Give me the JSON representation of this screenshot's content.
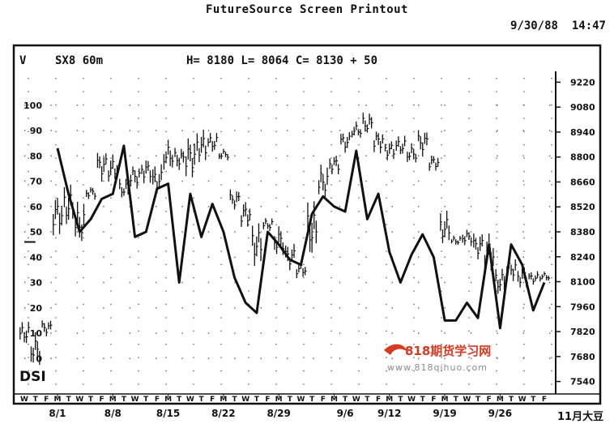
{
  "header": {
    "title": "FutureSource Screen Printout",
    "date": "9/30/88",
    "time": "14:47"
  },
  "info": {
    "v_label": "V",
    "symbol": "SX8 60m",
    "hlc": "H= 8180 L= 8064 C= 8130  + 50"
  },
  "indicator_label": "DSI",
  "corner_label": "11月大豆",
  "watermark": {
    "brand": "818期货学习网",
    "url": "www.818qihuo.com"
  },
  "colors": {
    "ink": "#111111",
    "watermark": "#d63a1f"
  },
  "chart_data": {
    "type": "bar",
    "y_left": {
      "ticks": [
        100,
        90,
        80,
        70,
        60,
        50,
        40,
        30,
        20,
        10,
        0
      ],
      "range": [
        -14,
        114
      ]
    },
    "y_right": {
      "ticks": [
        9220,
        9080,
        8940,
        8800,
        8660,
        8520,
        8380,
        8240,
        8100,
        7960,
        7820,
        7680,
        7540
      ],
      "range": [
        7470,
        9290
      ]
    },
    "weekday_labels": [
      "W",
      "T",
      "F",
      "M",
      "T",
      "W",
      "T",
      "F",
      "M",
      "T",
      "W",
      "T",
      "F",
      "M",
      "T",
      "W",
      "T",
      "F",
      "M",
      "T",
      "W",
      "T",
      "F",
      "M",
      "T",
      "W",
      "T",
      "F",
      "M",
      "T",
      "W",
      "T",
      "F",
      "M",
      "T",
      "W",
      "T",
      "F",
      "M",
      "T",
      "W",
      "T",
      "F",
      "M",
      "T",
      "W",
      "T",
      "F"
    ],
    "date_labels": [
      {
        "label": "8/1",
        "day_index": 3
      },
      {
        "label": "8/8",
        "day_index": 8
      },
      {
        "label": "8/15",
        "day_index": 13
      },
      {
        "label": "8/22",
        "day_index": 18
      },
      {
        "label": "8/29",
        "day_index": 23
      },
      {
        "label": "9/6",
        "day_index": 29
      },
      {
        "label": "9/12",
        "day_index": 33
      },
      {
        "label": "9/19",
        "day_index": 38
      },
      {
        "label": "9/26",
        "day_index": 43
      }
    ],
    "dsi_points": [
      [
        3,
        83
      ],
      [
        4,
        65
      ],
      [
        5,
        50
      ],
      [
        6,
        55
      ],
      [
        7,
        63
      ],
      [
        8,
        65
      ],
      [
        9,
        84
      ],
      [
        10,
        48
      ],
      [
        11,
        50
      ],
      [
        12,
        67
      ],
      [
        13,
        69
      ],
      [
        14,
        30
      ],
      [
        15,
        65
      ],
      [
        16,
        48
      ],
      [
        17,
        61
      ],
      [
        18,
        50
      ],
      [
        19,
        32
      ],
      [
        20,
        22
      ],
      [
        21,
        18
      ],
      [
        22,
        50
      ],
      [
        23,
        45
      ],
      [
        24,
        39
      ],
      [
        25,
        37
      ],
      [
        26,
        57
      ],
      [
        27,
        64
      ],
      [
        28,
        60
      ],
      [
        29,
        58
      ],
      [
        30,
        82
      ],
      [
        31,
        55
      ],
      [
        32,
        65
      ],
      [
        33,
        42
      ],
      [
        34,
        30
      ],
      [
        35,
        41
      ],
      [
        36,
        49
      ],
      [
        37,
        40
      ],
      [
        38,
        15
      ],
      [
        39,
        15
      ],
      [
        40,
        22
      ],
      [
        41,
        16
      ],
      [
        42,
        45
      ],
      [
        43,
        12
      ],
      [
        44,
        45
      ],
      [
        45,
        37
      ],
      [
        46,
        19
      ],
      [
        47,
        30
      ]
    ],
    "dsi_early_points": [
      [
        0,
        46
      ],
      [
        1,
        46
      ]
    ],
    "price_bars": [
      [
        0,
        7880,
        7740
      ],
      [
        1,
        7820,
        7620
      ],
      [
        2,
        7890,
        7790
      ],
      [
        3,
        8600,
        8360
      ],
      [
        4,
        8650,
        8400
      ],
      [
        5,
        8550,
        8300
      ],
      [
        6,
        8640,
        8560
      ],
      [
        7,
        8840,
        8660
      ],
      [
        8,
        8820,
        8650
      ],
      [
        9,
        8680,
        8560
      ],
      [
        10,
        8760,
        8620
      ],
      [
        11,
        8800,
        8650
      ],
      [
        12,
        8760,
        8580
      ],
      [
        13,
        8900,
        8720
      ],
      [
        14,
        8860,
        8720
      ],
      [
        15,
        8920,
        8680
      ],
      [
        16,
        8960,
        8760
      ],
      [
        17,
        8940,
        8820
      ],
      [
        18,
        8850,
        8780
      ],
      [
        19,
        8620,
        8500
      ],
      [
        20,
        8560,
        8400
      ],
      [
        21,
        8440,
        8180
      ],
      [
        22,
        8460,
        8380
      ],
      [
        23,
        8420,
        8240
      ],
      [
        24,
        8320,
        8160
      ],
      [
        25,
        8220,
        8120
      ],
      [
        26,
        8560,
        8220
      ],
      [
        27,
        8760,
        8560
      ],
      [
        28,
        8820,
        8700
      ],
      [
        29,
        8950,
        8820
      ],
      [
        30,
        9000,
        8900
      ],
      [
        31,
        9050,
        8920
      ],
      [
        32,
        8960,
        8820
      ],
      [
        33,
        8900,
        8780
      ],
      [
        34,
        8920,
        8800
      ],
      [
        35,
        8880,
        8760
      ],
      [
        36,
        8960,
        8800
      ],
      [
        37,
        8820,
        8720
      ],
      [
        38,
        8500,
        8300
      ],
      [
        39,
        8360,
        8300
      ],
      [
        40,
        8400,
        8300
      ],
      [
        41,
        8380,
        8220
      ],
      [
        42,
        8380,
        8140
      ],
      [
        43,
        8180,
        8020
      ],
      [
        44,
        8240,
        8100
      ],
      [
        45,
        8200,
        8060
      ],
      [
        46,
        8160,
        8080
      ],
      [
        47,
        8160,
        8100
      ]
    ]
  }
}
